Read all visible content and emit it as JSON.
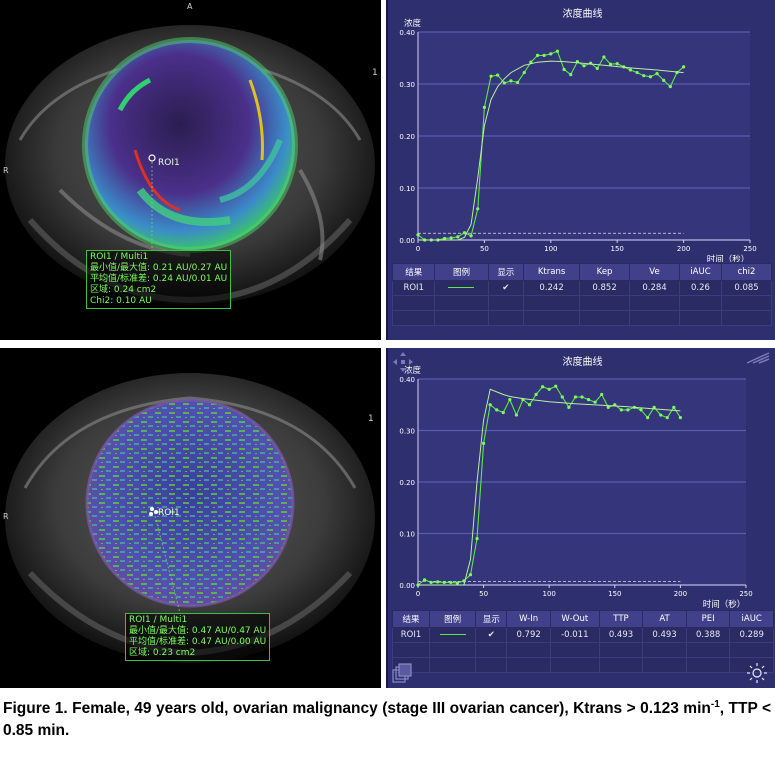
{
  "panels": [
    {
      "mri": {
        "orient_top": "A",
        "orient_left": "R",
        "roi_label": "ROI1",
        "roi_info": [
          "ROI1 / Multi1",
          "最小值/最大值: 0.21 AU/0.27 AU",
          "平均值/标准差: 0.24 AU/0.01 AU",
          "区域: 0.24 cm2",
          "Chi2: 0.10 AU"
        ]
      },
      "chart_data": {
        "type": "line",
        "title": "浓度曲线",
        "ylabel": "浓度",
        "xlabel": "时间（秒）",
        "xlim": [
          0,
          250
        ],
        "ylim": [
          0,
          0.4
        ],
        "x_ticks": [
          "0",
          "50",
          "100",
          "150",
          "200",
          "250"
        ],
        "y_ticks": [
          "0.00",
          "0.10",
          "0.20",
          "0.30",
          "0.40"
        ],
        "baseline": 0.013,
        "series": [
          {
            "type": "measured",
            "x": [
              0,
              5,
              10,
              15,
              20,
              25,
              30,
              35,
              40,
              45,
              50,
              55,
              60,
              65,
              70,
              75,
              80,
              85,
              90,
              95,
              100,
              105,
              110,
              115,
              120,
              125,
              130,
              135,
              140,
              145,
              150,
              155,
              160,
              165,
              170,
              175,
              180,
              185,
              190,
              195,
              200
            ],
            "y": [
              0.01,
              0.0,
              0.0,
              0.0,
              0.003,
              0.004,
              0.006,
              0.014,
              0.008,
              0.06,
              0.255,
              0.315,
              0.317,
              0.302,
              0.306,
              0.303,
              0.322,
              0.342,
              0.355,
              0.355,
              0.358,
              0.363,
              0.328,
              0.318,
              0.343,
              0.335,
              0.34,
              0.33,
              0.352,
              0.338,
              0.339,
              0.333,
              0.327,
              0.322,
              0.316,
              0.314,
              0.32,
              0.307,
              0.295,
              0.322,
              0.333
            ]
          },
          {
            "type": "fit",
            "x": [
              0,
              30,
              35,
              40,
              45,
              50,
              55,
              60,
              65,
              70,
              80,
              90,
              100,
              110,
              120,
              140,
              160,
              180,
              200
            ],
            "y": [
              0.0,
              0.0,
              0.005,
              0.03,
              0.12,
              0.22,
              0.27,
              0.295,
              0.31,
              0.322,
              0.336,
              0.342,
              0.344,
              0.343,
              0.341,
              0.336,
              0.331,
              0.327,
              0.322
            ]
          }
        ]
      },
      "table": {
        "headers": [
          "结果",
          "图例",
          "显示",
          "Ktrans",
          "Kep",
          "Ve",
          "iAUC",
          "chi2"
        ],
        "rows": [
          [
            "ROI1",
            "",
            "✔",
            "0.242",
            "0.852",
            "0.284",
            "0.26",
            "0.085"
          ]
        ]
      }
    },
    {
      "mri": {
        "orient_left": "R",
        "roi_label": "ROI1",
        "roi_info": [
          "ROI1 / Multi1",
          "最小值/最大值: 0.47 AU/0.47 AU",
          "平均值/标准差: 0.47 AU/0.00 AU",
          "区域: 0.23 cm2"
        ]
      },
      "chart_data": {
        "type": "line",
        "title": "浓度曲线",
        "ylabel": "浓度",
        "xlabel": "时间（秒）",
        "xlim": [
          0,
          250
        ],
        "ylim": [
          0,
          0.4
        ],
        "x_ticks": [
          "0",
          "50",
          "100",
          "150",
          "200",
          "250"
        ],
        "y_ticks": [
          "0.00",
          "0.10",
          "0.20",
          "0.30",
          "0.40"
        ],
        "baseline": 0.007,
        "series": [
          {
            "type": "measured",
            "x": [
              0,
              5,
              10,
              15,
              20,
              25,
              30,
              35,
              40,
              45,
              50,
              55,
              60,
              65,
              70,
              75,
              80,
              85,
              90,
              95,
              100,
              105,
              110,
              115,
              120,
              125,
              130,
              135,
              140,
              145,
              150,
              155,
              160,
              165,
              170,
              175,
              180,
              185,
              190,
              195,
              200
            ],
            "y": [
              0.0,
              0.01,
              0.005,
              0.006,
              0.005,
              0.005,
              0.004,
              0.008,
              0.02,
              0.09,
              0.275,
              0.35,
              0.34,
              0.335,
              0.36,
              0.33,
              0.36,
              0.35,
              0.37,
              0.385,
              0.38,
              0.386,
              0.365,
              0.345,
              0.365,
              0.365,
              0.36,
              0.355,
              0.37,
              0.345,
              0.35,
              0.34,
              0.34,
              0.345,
              0.34,
              0.325,
              0.345,
              0.33,
              0.325,
              0.345,
              0.325
            ]
          },
          {
            "type": "fit",
            "x": [
              0,
              35,
              40,
              45,
              50,
              55,
              60,
              65,
              70,
              80,
              100,
              120,
              140,
              160,
              180,
              200
            ],
            "y": [
              0.0,
              0.0,
              0.05,
              0.2,
              0.32,
              0.38,
              0.375,
              0.37,
              0.366,
              0.362,
              0.356,
              0.352,
              0.349,
              0.346,
              0.342,
              0.338
            ]
          }
        ]
      },
      "table": {
        "headers": [
          "结果",
          "图例",
          "显示",
          "W-In",
          "W-Out",
          "TTP",
          "AT",
          "PEI",
          "iAUC"
        ],
        "rows": [
          [
            "ROI1",
            "",
            "✔",
            "0.792",
            "-0.011",
            "0.493",
            "0.493",
            "0.388",
            "0.289"
          ]
        ]
      }
    }
  ],
  "caption": {
    "part1": "Figure 1. Female, 49 years old, ovarian malignancy (stage III ovarian cancer), Ktrans > 0.123 min",
    "sup": "-1",
    "part2": ", TTP < 0.85 min."
  }
}
